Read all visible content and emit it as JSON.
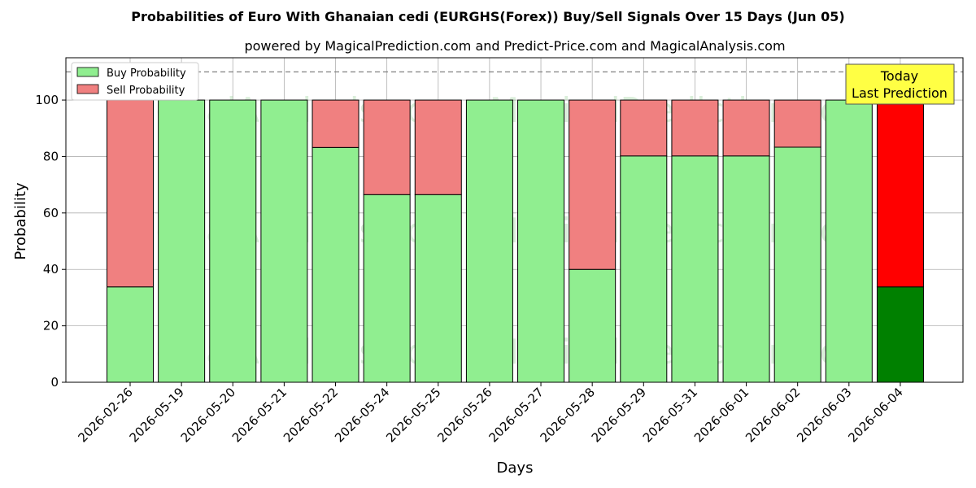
{
  "chart_data": {
    "type": "bar",
    "stacked": true,
    "title": "Probabilities of Euro With Ghanaian cedi (EURGHS(Forex)) Buy/Sell Signals Over 15 Days (Jun 05)",
    "subtitle": "powered by MagicalPrediction.com and Predict-Price.com and MagicalAnalysis.com",
    "xlabel": "Days",
    "ylabel": "Probability",
    "ylim": [
      0,
      115
    ],
    "yticks": [
      "0",
      "20",
      "40",
      "60",
      "80",
      "100"
    ],
    "reference_line": 110,
    "grid": true,
    "legend_placement": "top-left",
    "categories": [
      "2026-02-26",
      "2026-05-19",
      "2026-05-20",
      "2026-05-21",
      "2026-05-22",
      "2026-05-24",
      "2026-05-25",
      "2026-05-26",
      "2026-05-27",
      "2026-05-28",
      "2026-05-29",
      "2026-05-31",
      "2026-06-01",
      "2026-06-02",
      "2026-06-03",
      "2026-06-04"
    ],
    "series": [
      {
        "name": "Buy Probability",
        "color": "#90ee90",
        "values": [
          33.8,
          100,
          100,
          100,
          83.2,
          66.5,
          66.5,
          100,
          100,
          40,
          80.2,
          80.2,
          80.2,
          83.3,
          100,
          33.8
        ]
      },
      {
        "name": "Sell Probability",
        "color": "#f08080",
        "values": [
          66.2,
          0,
          0,
          0,
          16.8,
          33.5,
          33.5,
          0,
          0,
          60,
          19.8,
          19.8,
          19.8,
          16.7,
          0,
          66.2
        ]
      }
    ],
    "highlight": {
      "index": 15,
      "buy_color": "#008000",
      "sell_color": "#ff0000",
      "label_line1": "Today",
      "label_line2": "Last Prediction"
    }
  },
  "watermarks": [
    "MagicalAnalysis.com",
    "MagicalPrediction.com"
  ]
}
